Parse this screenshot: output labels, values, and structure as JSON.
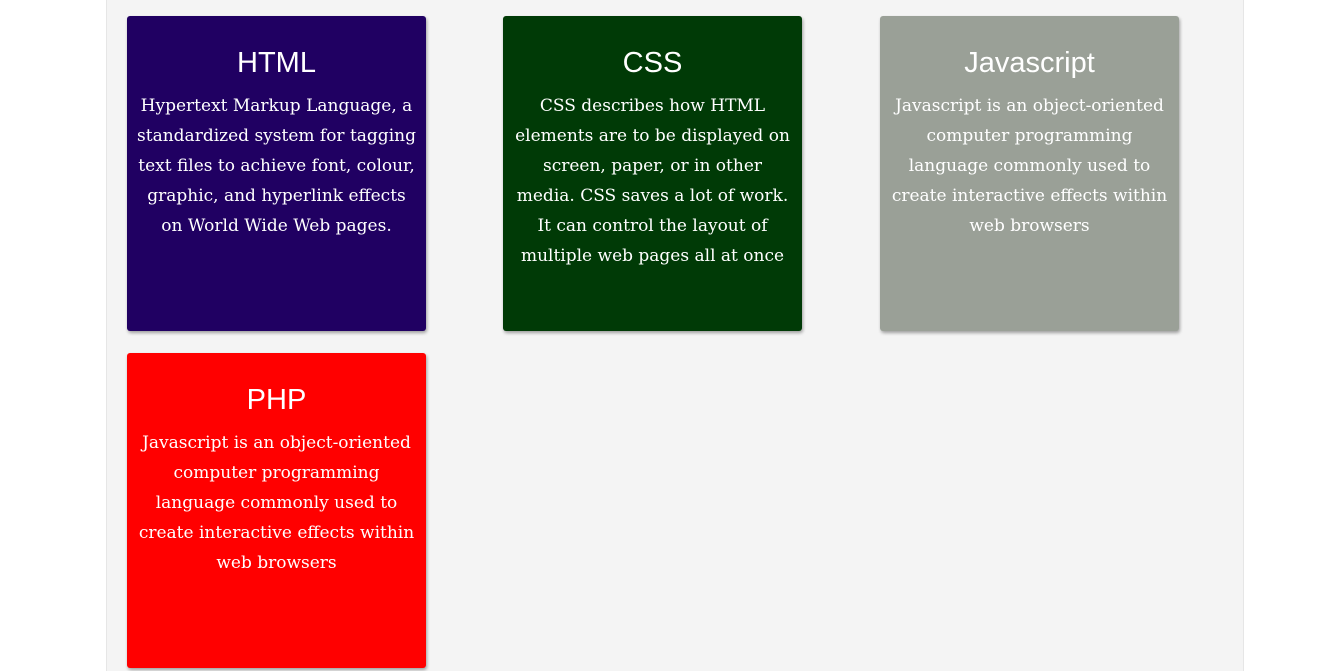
{
  "cards": [
    {
      "title": "HTML",
      "text": "Hypertext Markup Language, a standardized system for tagging text files to achieve font, colour, graphic, and hyperlink effects on World Wide Web pages.",
      "color": "#200062"
    },
    {
      "title": "CSS",
      "text": "CSS describes how HTML elements are to be displayed on screen, paper, or in other media. CSS saves a lot of work. It can control the layout of multiple web pages all at once",
      "color": "#003a06"
    },
    {
      "title": "Javascript",
      "text": "Javascript is an object-oriented computer programming language commonly used to create interactive effects within web browsers",
      "color": "#9aa097"
    },
    {
      "title": "PHP",
      "text": "Javascript is an object-oriented computer programming language commonly used to create interactive effects within web browsers",
      "color": "#ff0000"
    }
  ]
}
